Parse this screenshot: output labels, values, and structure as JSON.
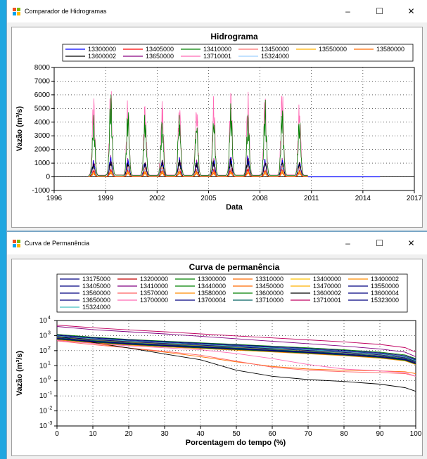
{
  "window1": {
    "title": "Comparador de Hidrogramas",
    "controls": {
      "minimize": "–",
      "maximize": "☐",
      "close": "✕"
    }
  },
  "window2": {
    "title": "Curva de Permanência",
    "controls": {
      "minimize": "–",
      "maximize": "☐",
      "close": "✕"
    }
  },
  "chart_data": [
    {
      "type": "line",
      "title": "Hidrograma",
      "xlabel": "Data",
      "ylabel": "Vazão (m³/s)",
      "xlim": [
        1996,
        2017
      ],
      "ylim": [
        -1000,
        8000
      ],
      "xticks": [
        1996,
        1999,
        2002,
        2005,
        2008,
        2011,
        2014,
        2017
      ],
      "yticks": [
        -1000,
        0,
        1000,
        2000,
        3000,
        4000,
        5000,
        6000,
        7000,
        8000
      ],
      "grid": true,
      "legend_position": "top",
      "data_span": [
        1998,
        2010.8
      ],
      "flat_tail": {
        "series": "13300000",
        "x": [
          2010.8,
          2015
        ],
        "y": 0
      },
      "series": [
        {
          "name": "13300000",
          "color": "#0000ff",
          "annual_peaks": [
            1200,
            1600,
            1500,
            1300,
            1400,
            1500,
            1200,
            1300,
            1500,
            1600,
            1400,
            1500,
            1300
          ]
        },
        {
          "name": "13405000",
          "color": "#ff0000",
          "annual_peaks": [
            500,
            600,
            550,
            500,
            600,
            550,
            500,
            550,
            600,
            650,
            500,
            600,
            550
          ]
        },
        {
          "name": "13410000",
          "color": "#008000",
          "annual_peaks": [
            4600,
            6300,
            5200,
            4900,
            4700,
            5300,
            4800,
            5000,
            5700,
            4800,
            5600,
            5400,
            4700
          ]
        },
        {
          "name": "13450000",
          "color": "#ff7070",
          "annual_peaks": [
            700,
            800,
            750,
            700,
            800,
            750,
            700,
            750,
            800,
            850,
            700,
            800,
            750
          ]
        },
        {
          "name": "13550000",
          "color": "#ffb000",
          "annual_peaks": [
            400,
            450,
            420,
            400,
            450,
            430,
            400,
            420,
            450,
            460,
            400,
            450,
            420
          ]
        },
        {
          "name": "13580000",
          "color": "#ff6a00",
          "annual_peaks": [
            300,
            350,
            320,
            300,
            350,
            330,
            300,
            320,
            350,
            360,
            300,
            350,
            320
          ]
        },
        {
          "name": "13600002",
          "color": "#000000",
          "annual_peaks": [
            1100,
            1400,
            1300,
            1200,
            1300,
            1350,
            1150,
            1250,
            1400,
            1450,
            1300,
            1400,
            1200
          ]
        },
        {
          "name": "13650000",
          "color": "#8b0080",
          "annual_peaks": [
            1300,
            1700,
            1600,
            1400,
            1500,
            1600,
            1300,
            1400,
            1600,
            1700,
            1500,
            1600,
            1400
          ]
        },
        {
          "name": "13710001",
          "color": "#ff69b4",
          "annual_peaks": [
            6100,
            7000,
            6100,
            6300,
            6700,
            6400,
            5900,
            6100,
            6500,
            6200,
            6600,
            7200,
            6200
          ]
        },
        {
          "name": "15324000",
          "color": "#9ed0ff",
          "annual_peaks": [
            600,
            700,
            650,
            600,
            700,
            650,
            600,
            650,
            700,
            750,
            600,
            700,
            650
          ]
        }
      ]
    },
    {
      "type": "line",
      "title": "Curva de permanência",
      "xlabel": "Porcentagem do tempo (%)",
      "ylabel": "Vazão (m³/s)",
      "xlim": [
        0,
        100
      ],
      "ylim": [
        0.001,
        10000
      ],
      "yscale": "log",
      "xticks": [
        0,
        10,
        20,
        30,
        40,
        50,
        60,
        70,
        80,
        90,
        100
      ],
      "ytick_labels": [
        [
          "10",
          "4"
        ],
        [
          "10",
          "3"
        ],
        [
          "10",
          "2"
        ],
        [
          "10",
          "1"
        ],
        [
          "10",
          "0"
        ],
        [
          "10",
          "-1"
        ],
        [
          "10",
          "-2"
        ],
        [
          "10",
          "-3"
        ]
      ],
      "grid": true,
      "legend_position": "top",
      "x_points": [
        0,
        10,
        20,
        30,
        40,
        50,
        60,
        70,
        80,
        90,
        97,
        100
      ],
      "series": [
        {
          "name": "13175000",
          "color": "#000080",
          "values": [
            700,
            420,
            300,
            230,
            180,
            140,
            105,
            80,
            60,
            42,
            28,
            18
          ]
        },
        {
          "name": "13200000",
          "color": "#c00000",
          "values": [
            900,
            560,
            420,
            320,
            250,
            190,
            150,
            115,
            85,
            60,
            38,
            22
          ]
        },
        {
          "name": "13300000",
          "color": "#008000",
          "values": [
            1200,
            780,
            560,
            430,
            330,
            260,
            200,
            155,
            115,
            80,
            52,
            30
          ]
        },
        {
          "name": "13310000",
          "color": "#ff6a00",
          "values": [
            600,
            380,
            270,
            200,
            160,
            125,
            95,
            72,
            54,
            38,
            25,
            15
          ]
        },
        {
          "name": "13400000",
          "color": "#ffc000",
          "values": [
            800,
            500,
            370,
            280,
            220,
            170,
            130,
            100,
            75,
            52,
            33,
            20
          ]
        },
        {
          "name": "13400002",
          "color": "#ff8c00",
          "values": [
            650,
            420,
            300,
            230,
            180,
            140,
            108,
            82,
            60,
            42,
            28,
            17
          ]
        },
        {
          "name": "13405000",
          "color": "#000080",
          "values": [
            1000,
            650,
            480,
            360,
            280,
            215,
            165,
            125,
            92,
            64,
            40,
            24
          ]
        },
        {
          "name": "13410000",
          "color": "#800080",
          "values": [
            4000,
            2500,
            1800,
            1300,
            900,
            620,
            420,
            290,
            200,
            130,
            80,
            40
          ]
        },
        {
          "name": "13440000",
          "color": "#008000",
          "values": [
            500,
            330,
            240,
            180,
            140,
            110,
            85,
            65,
            48,
            34,
            22,
            12
          ]
        },
        {
          "name": "13450000",
          "color": "#ff6a00",
          "values": [
            800,
            300,
            150,
            80,
            40,
            18,
            9,
            6,
            5,
            4.5,
            4,
            3
          ]
        },
        {
          "name": "13470000",
          "color": "#ffb000",
          "values": [
            700,
            450,
            330,
            250,
            195,
            150,
            115,
            88,
            65,
            45,
            29,
            17
          ]
        },
        {
          "name": "13550000",
          "color": "#000080",
          "values": [
            600,
            380,
            270,
            205,
            160,
            122,
            94,
            72,
            53,
            37,
            24,
            14
          ]
        },
        {
          "name": "13560000",
          "color": "#000080",
          "values": [
            550,
            350,
            250,
            190,
            150,
            115,
            88,
            67,
            50,
            35,
            22,
            13
          ]
        },
        {
          "name": "13570000",
          "color": "#ff6060",
          "values": [
            450,
            250,
            150,
            90,
            50,
            20,
            8,
            5,
            4,
            3.5,
            3,
            2
          ]
        },
        {
          "name": "13580000",
          "color": "#ff8c00",
          "values": [
            520,
            330,
            235,
            178,
            139,
            107,
            82,
            62,
            46,
            32,
            21,
            12
          ]
        },
        {
          "name": "13600000",
          "color": "#008000",
          "values": [
            580,
            370,
            265,
            200,
            156,
            120,
            92,
            70,
            52,
            36,
            23,
            13
          ]
        },
        {
          "name": "13600002",
          "color": "#000000",
          "values": [
            900,
            350,
            150,
            60,
            25,
            5,
            2,
            1.2,
            0.9,
            0.6,
            0.35,
            0.2
          ]
        },
        {
          "name": "13600004",
          "color": "#000080",
          "values": [
            620,
            395,
            283,
            214,
            167,
            128,
            98,
            75,
            55,
            38,
            25,
            14
          ]
        },
        {
          "name": "13650000",
          "color": "#000080",
          "values": [
            1100,
            720,
            530,
            400,
            310,
            240,
            185,
            140,
            105,
            72,
            46,
            27
          ]
        },
        {
          "name": "13700000",
          "color": "#ff69b4",
          "values": [
            480,
            300,
            210,
            155,
            115,
            65,
            30,
            12,
            6,
            4.5,
            3.5,
            2
          ]
        },
        {
          "name": "13700004",
          "color": "#000080",
          "values": [
            670,
            430,
            308,
            233,
            182,
            140,
            107,
            82,
            60,
            42,
            27,
            16
          ]
        },
        {
          "name": "13710000",
          "color": "#006060",
          "values": [
            730,
            470,
            336,
            254,
            198,
            152,
            117,
            89,
            66,
            46,
            30,
            18
          ]
        },
        {
          "name": "13710001",
          "color": "#c00060",
          "values": [
            5000,
            3300,
            2400,
            1800,
            1300,
            950,
            700,
            520,
            380,
            260,
            160,
            80
          ]
        },
        {
          "name": "15323000",
          "color": "#000080",
          "values": [
            850,
            540,
            390,
            295,
            230,
            177,
            136,
            104,
            77,
            53,
            34,
            20
          ]
        },
        {
          "name": "15324000",
          "color": "#40c0c0",
          "values": [
            950,
            610,
            440,
            330,
            257,
            198,
            152,
            116,
            86,
            60,
            38,
            22
          ]
        }
      ]
    }
  ]
}
